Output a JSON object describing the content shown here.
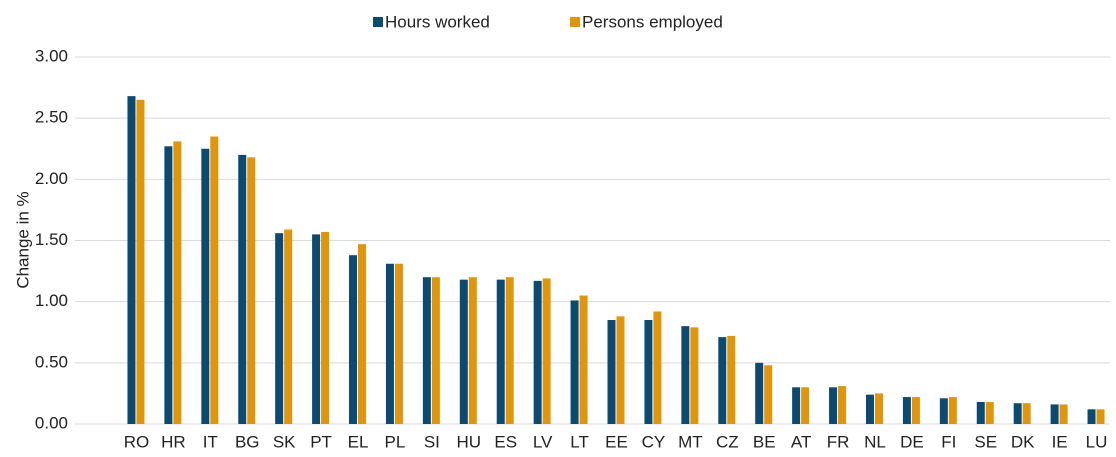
{
  "chart_data": {
    "type": "bar",
    "y_label": "Change in %",
    "categories": [
      "RO",
      "HR",
      "IT",
      "BG",
      "SK",
      "PT",
      "EL",
      "PL",
      "SI",
      "HU",
      "ES",
      "LV",
      "LT",
      "EE",
      "CY",
      "MT",
      "CZ",
      "BE",
      "AT",
      "FR",
      "NL",
      "DE",
      "FI",
      "SE",
      "DK",
      "IE",
      "LU"
    ],
    "series": [
      {
        "name": "Hours worked",
        "color": "#0d4a70",
        "values": [
          2.68,
          2.27,
          2.25,
          2.2,
          1.56,
          1.55,
          1.38,
          1.31,
          1.2,
          1.18,
          1.18,
          1.17,
          1.01,
          0.85,
          0.85,
          0.8,
          0.71,
          0.5,
          0.3,
          0.3,
          0.24,
          0.22,
          0.21,
          0.18,
          0.17,
          0.16,
          0.12
        ]
      },
      {
        "name": "Persons employed",
        "color": "#e0950f",
        "values": [
          2.65,
          2.31,
          2.35,
          2.18,
          1.59,
          1.57,
          1.47,
          1.31,
          1.2,
          1.2,
          1.2,
          1.19,
          1.05,
          0.88,
          0.92,
          0.79,
          0.72,
          0.48,
          0.3,
          0.31,
          0.25,
          0.22,
          0.22,
          0.18,
          0.17,
          0.16,
          0.12
        ]
      }
    ],
    "ylim": [
      0,
      3
    ],
    "yticks": [
      {
        "value": 0,
        "label": "0.00"
      },
      {
        "value": 0.5,
        "label": "0.50"
      },
      {
        "value": 1,
        "label": "1.00"
      },
      {
        "value": 1.5,
        "label": "1.50"
      },
      {
        "value": 2,
        "label": "2.00"
      },
      {
        "value": 2.5,
        "label": "2.50"
      },
      {
        "value": 3,
        "label": "3.00"
      }
    ],
    "grid": true,
    "legend": "top"
  }
}
